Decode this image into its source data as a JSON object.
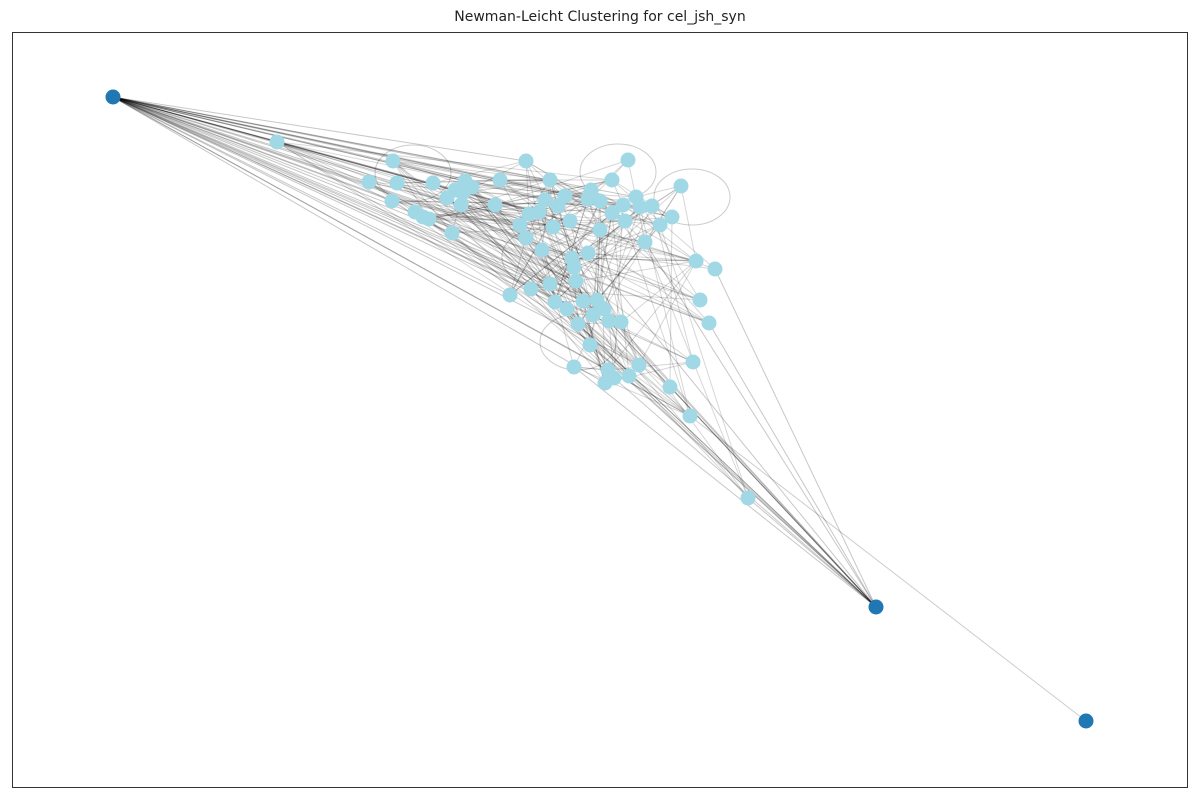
{
  "title": "Newman-Leicht Clustering for cel_jsh_syn",
  "colors": {
    "cluster_main": "#a0d8e6",
    "cluster_outlier": "#1f77b4",
    "edge": "#000000",
    "frame": "#333333"
  },
  "clusters": [
    {
      "name": "light blue",
      "color": "#a0d8e6",
      "node_count": 77
    },
    {
      "name": "dark blue",
      "color": "#1f77b4",
      "node_count": 3
    }
  ]
}
